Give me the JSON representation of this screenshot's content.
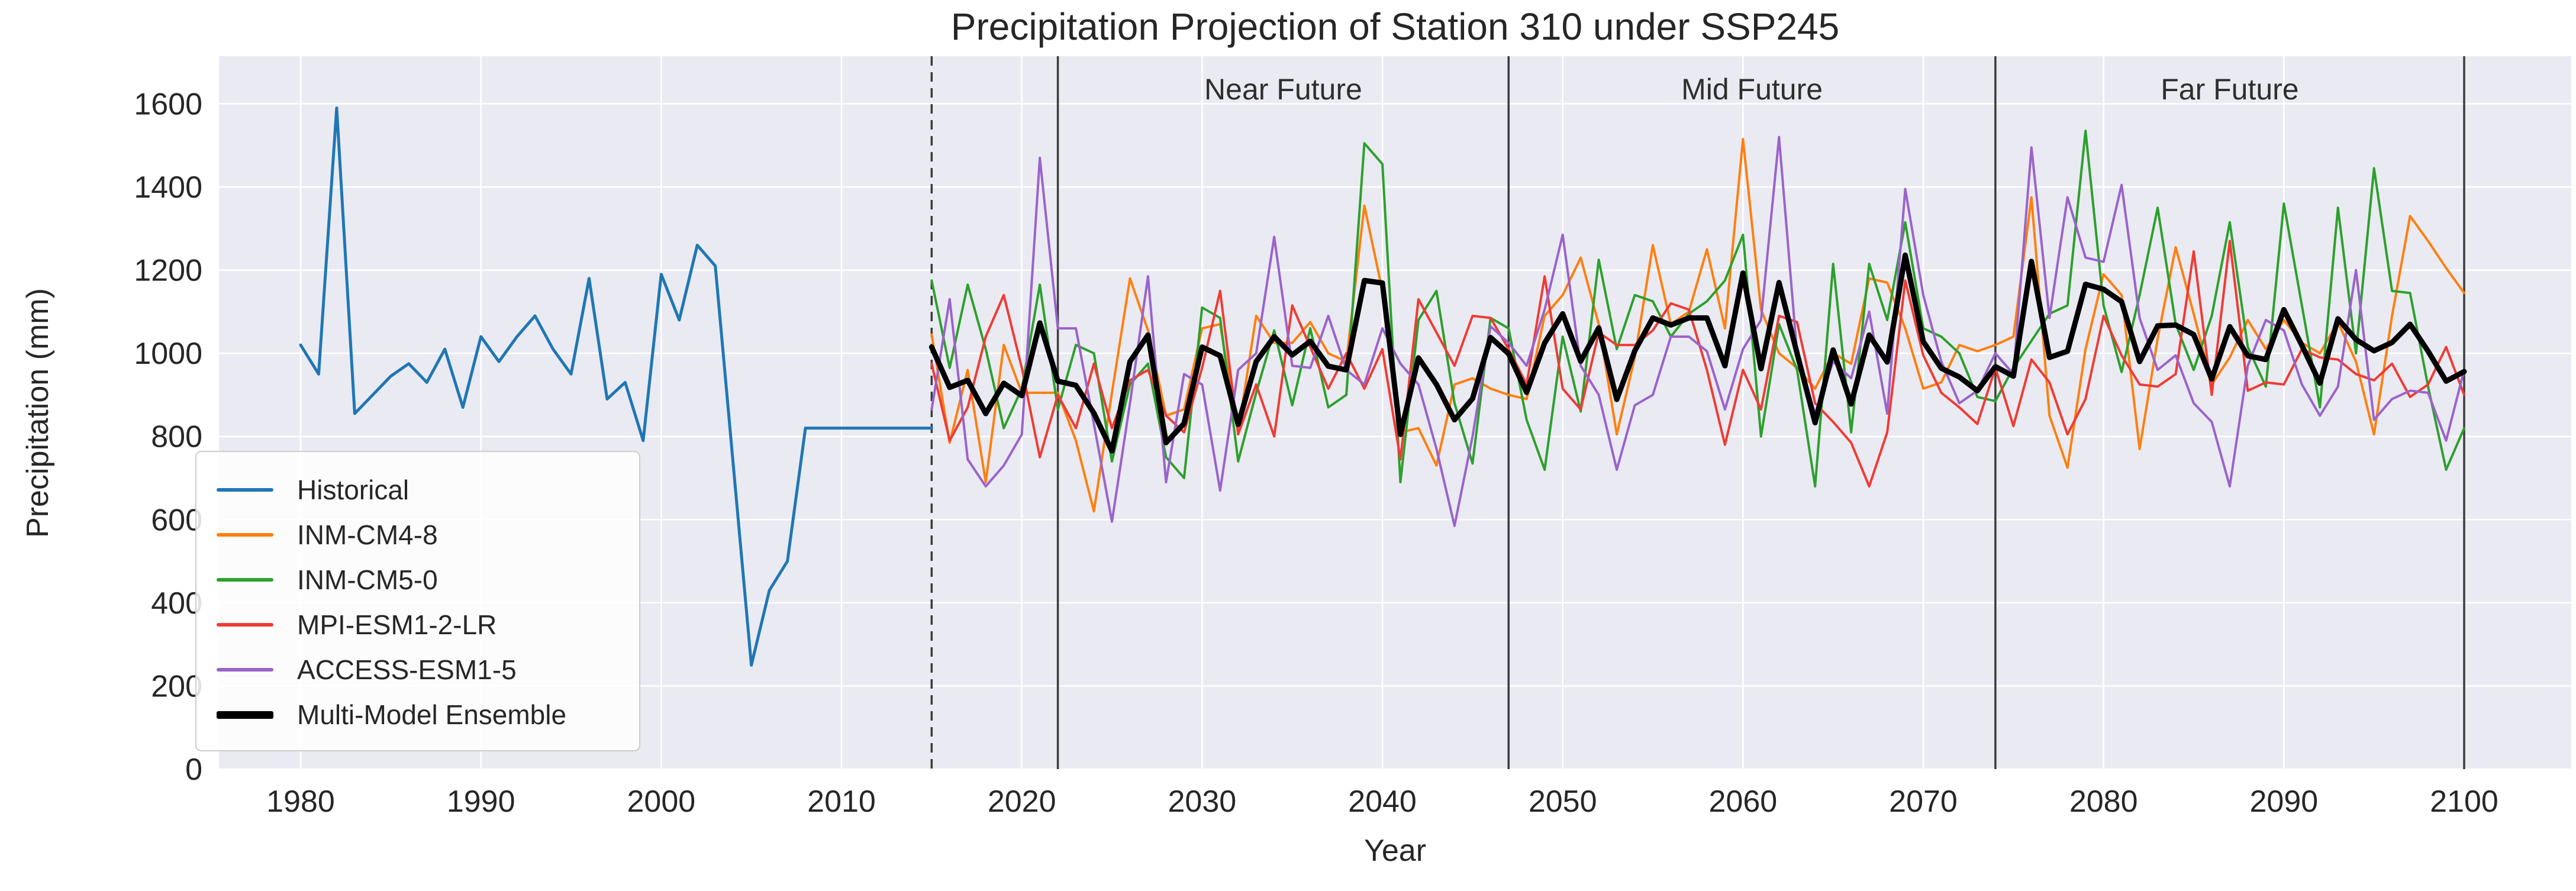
{
  "chart_data": {
    "type": "line",
    "title": "Precipitation Projection of Station 310 under SSP245",
    "xlabel": "Year",
    "ylabel": "Precipitation (mm)",
    "xlim": [
      1975.5,
      2106
    ],
    "ylim": [
      0,
      1714
    ],
    "xticks": [
      1980,
      1990,
      2000,
      2010,
      2020,
      2030,
      2040,
      2050,
      2060,
      2070,
      2080,
      2090,
      2100
    ],
    "yticks": [
      0,
      200,
      400,
      600,
      800,
      1000,
      1200,
      1400,
      1600
    ],
    "grid": true,
    "plot_background": "#eaeaf2",
    "grid_color": "#ffffff",
    "boundary_line_color": "#3b3b3b",
    "historical_split": {
      "year": 2015,
      "style": "dashed"
    },
    "period_lines": [
      2022,
      2047,
      2074,
      2100
    ],
    "periods": [
      {
        "label": "Near Future",
        "from": 2022,
        "to": 2047
      },
      {
        "label": "Mid Future",
        "from": 2047,
        "to": 2074
      },
      {
        "label": "Far Future",
        "from": 2074,
        "to": 2100
      }
    ],
    "legend_position": "lower left",
    "series": [
      {
        "name": "Historical",
        "color": "#1f77b4",
        "width": 5,
        "x_start": 1980,
        "values": [
          1020,
          950,
          1590,
          855,
          900,
          945,
          975,
          930,
          1010,
          870,
          1040,
          980,
          1040,
          1090,
          1010,
          950,
          1180,
          890,
          930,
          790,
          1190,
          1080,
          1260,
          1210,
          730,
          250,
          430,
          500,
          820,
          820,
          820,
          820,
          820,
          820,
          820,
          820
        ]
      },
      {
        "name": "INM-CM4-8",
        "color": "#ff7f0e",
        "width": 4,
        "x_start": 2015,
        "values": [
          1045,
          785,
          960,
          690,
          1020,
          905,
          905,
          905,
          790,
          620,
          905,
          1180,
          1055,
          850,
          865,
          1060,
          1070,
          810,
          1090,
          1025,
          1025,
          1075,
          1000,
          980,
          1355,
          1150,
          810,
          820,
          730,
          925,
          940,
          915,
          900,
          890,
          1090,
          1140,
          1230,
          1070,
          805,
          990,
          1260,
          1070,
          1100,
          1250,
          1060,
          1515,
          1105,
          1000,
          965,
          915,
          1000,
          975,
          1180,
          1170,
          1060,
          915,
          930,
          1020,
          1005,
          1020,
          1040,
          1375,
          850,
          725,
          1010,
          1190,
          1140,
          770,
          1035,
          1255,
          1095,
          925,
          990,
          1080,
          1010,
          1080,
          1025,
          1000,
          1075,
          980,
          805,
          1090,
          1330,
          1270,
          1205,
          1145
        ]
      },
      {
        "name": "INM-CM5-0",
        "color": "#2ca02c",
        "width": 4,
        "x_start": 2015,
        "values": [
          1175,
          965,
          1165,
          1010,
          820,
          915,
          1165,
          865,
          1020,
          1000,
          740,
          925,
          975,
          750,
          700,
          1110,
          1085,
          740,
          905,
          1055,
          875,
          1060,
          870,
          900,
          1505,
          1455,
          690,
          1080,
          1150,
          880,
          735,
          1085,
          1060,
          840,
          720,
          1040,
          860,
          1225,
          1010,
          1140,
          1125,
          1040,
          1095,
          1125,
          1175,
          1285,
          800,
          1070,
          960,
          680,
          1215,
          810,
          1215,
          1080,
          1315,
          1060,
          1040,
          1000,
          895,
          885,
          965,
          1030,
          1095,
          1115,
          1535,
          1115,
          955,
          1140,
          1350,
          1070,
          960,
          1090,
          1315,
          1015,
          920,
          1360,
          1115,
          870,
          1350,
          1000,
          1445,
          1150,
          1145,
          920,
          720,
          820
        ]
      },
      {
        "name": "MPI-ESM1-2-LR",
        "color": "#f03b33",
        "width": 4,
        "x_start": 2015,
        "values": [
          975,
          790,
          870,
          1040,
          1140,
          965,
          750,
          900,
          820,
          975,
          820,
          935,
          960,
          850,
          810,
          965,
          1150,
          805,
          925,
          800,
          1115,
          1015,
          915,
          1000,
          915,
          1010,
          745,
          1130,
          1050,
          970,
          1090,
          1085,
          1010,
          925,
          1185,
          915,
          865,
          1050,
          1020,
          1020,
          1055,
          1120,
          1105,
          960,
          780,
          960,
          865,
          1090,
          1075,
          880,
          835,
          785,
          680,
          810,
          1175,
          995,
          905,
          870,
          830,
          965,
          825,
          985,
          930,
          805,
          890,
          1090,
          995,
          925,
          920,
          950,
          1245,
          900,
          1270,
          910,
          930,
          925,
          1010,
          990,
          985,
          950,
          935,
          975,
          895,
          925,
          1015,
          900
        ]
      },
      {
        "name": "ACCESS-ESM1-5",
        "color": "#9a63cb",
        "width": 4,
        "x_start": 2015,
        "values": [
          865,
          1130,
          745,
          680,
          730,
          805,
          1470,
          1060,
          1060,
          830,
          595,
          880,
          1185,
          690,
          950,
          925,
          670,
          960,
          1000,
          1280,
          970,
          965,
          1090,
          960,
          925,
          1060,
          975,
          925,
          770,
          585,
          800,
          1065,
          1025,
          970,
          1105,
          1285,
          970,
          900,
          720,
          875,
          900,
          1040,
          1040,
          1005,
          865,
          1010,
          1080,
          1520,
          1000,
          855,
          980,
          940,
          1100,
          855,
          1395,
          1140,
          980,
          880,
          910,
          1000,
          950,
          1495,
          1085,
          1375,
          1230,
          1220,
          1405,
          1085,
          960,
          995,
          880,
          835,
          680,
          970,
          1080,
          1055,
          925,
          850,
          920,
          1200,
          840,
          890,
          910,
          905,
          790,
          960
        ]
      },
      {
        "name": "Multi-Model Ensemble",
        "color": "#000000",
        "width": 9,
        "x_start": 2015,
        "values": [
          1015,
          918,
          935,
          855,
          928,
          898,
          1073,
          933,
          923,
          856,
          765,
          980,
          1044,
          785,
          831,
          1015,
          994,
          829,
          980,
          1040,
          996,
          1029,
          969,
          960,
          1175,
          1169,
          805,
          989,
          925,
          840,
          891,
          1038,
          999,
          906,
          1025,
          1095,
          981,
          1061,
          889,
          1006,
          1085,
          1068,
          1085,
          1085,
          970,
          1193,
          963,
          1170,
          1000,
          833,
          1008,
          878,
          1044,
          979,
          1236,
          1028,
          964,
          943,
          910,
          968,
          945,
          1221,
          990,
          1005,
          1166,
          1154,
          1124,
          980,
          1066,
          1068,
          1045,
          938,
          1064,
          994,
          985,
          1105,
          1019,
          928,
          1083,
          1033,
          1006,
          1026,
          1070,
          1005,
          933,
          956
        ]
      }
    ]
  }
}
